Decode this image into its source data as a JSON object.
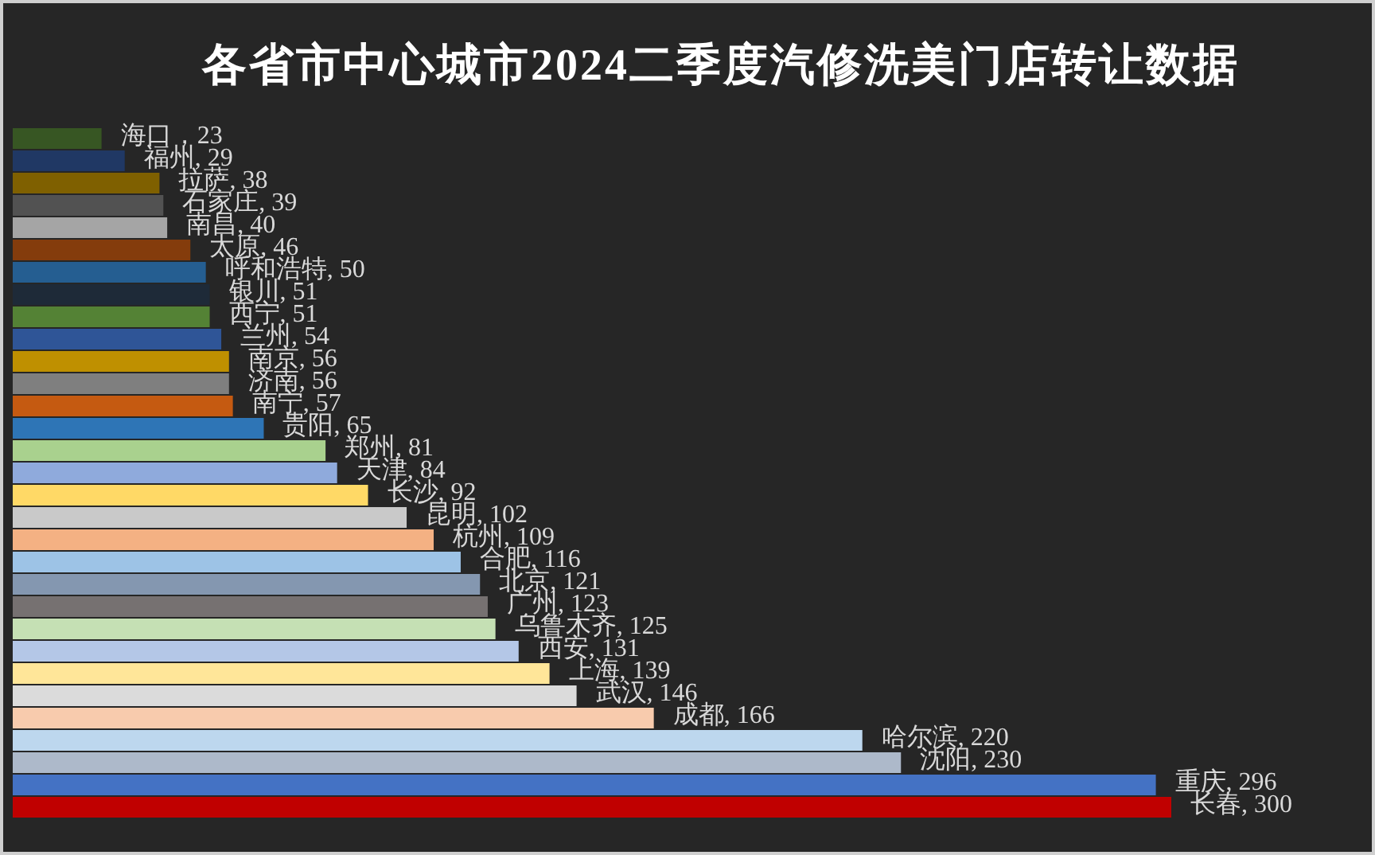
{
  "chart_data": {
    "type": "bar",
    "orientation": "horizontal",
    "title": "各省市中心城市2024二季度汽修洗美门店转让数据",
    "categories": [
      null,
      null,
      null,
      null,
      null,
      null,
      null,
      null,
      null,
      null,
      null,
      null,
      null,
      null,
      null,
      null,
      null,
      null,
      null,
      null,
      null,
      null,
      null,
      null,
      null,
      null,
      null,
      null,
      null,
      null,
      null
    ],
    "values": [
      23,
      29,
      38,
      39,
      40,
      46,
      50,
      51,
      51,
      54,
      56,
      56,
      57,
      65,
      81,
      84,
      92,
      102,
      109,
      116,
      121,
      123,
      125,
      131,
      139,
      146,
      166,
      220,
      230,
      296,
      300
    ],
    "colors": [
      "#375623",
      "#203864",
      "#7f6000",
      "#525252",
      "#a5a5a5",
      "#843c0c",
      "#255e91",
      "#1e2a38",
      "#548235",
      "#2f5597",
      "#bf9000",
      "#7f7f7f",
      "#c55a11",
      "#2e75b6",
      "#a9d18e",
      "#8faadc",
      "#ffd966",
      "#c9c9c9",
      "#f4b183",
      "#9dc3e6",
      "#8497b0",
      "#767171",
      "#c5e0b4",
      "#b4c7e7",
      "#ffe699",
      "#dbdbdb",
      "#f8cbad",
      "#bdd7ee",
      "#adb9ca",
      "#4472c4",
      "#c00000"
    ],
    "value_labels": [
      "海口，23",
      "福州, 29",
      "拉萨, 38",
      "石家庄, 39",
      "南昌, 40",
      "太原, 46",
      "呼和浩特, 50",
      "银川, 51",
      "西宁, 51",
      "兰州, 54",
      "南京, 56",
      "济南, 56",
      "南宁, 57",
      "贵阳, 65",
      "郑州, 81",
      "天津, 84",
      "长沙, 92",
      "昆明, 102",
      "杭州, 109",
      "合肥, 116",
      "北京, 121",
      "广州, 123",
      "乌鲁木齐, 125",
      "西安, 131",
      "上海, 139",
      "武汉, 146",
      "成都, 166",
      "哈尔滨, 220",
      "沈阳, 230",
      "重庆, 296",
      "长春, 300"
    ],
    "tick_labels": false
  }
}
